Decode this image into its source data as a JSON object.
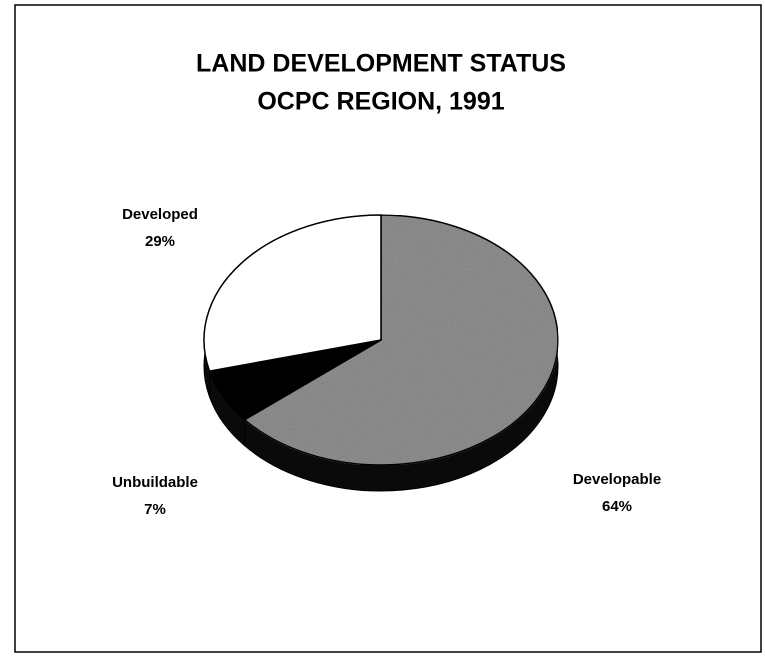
{
  "chart_data": {
    "type": "pie",
    "title": [
      "LAND DEVELOPMENT STATUS",
      "OCPC REGION, 1991"
    ],
    "categories": [
      "Developable",
      "Unbuildable",
      "Developed"
    ],
    "values": [
      64,
      7,
      29
    ],
    "value_labels": [
      "64%",
      "7%",
      "29%"
    ],
    "colors": [
      "#9c9c9c",
      "#000000",
      "#ffffff"
    ]
  }
}
